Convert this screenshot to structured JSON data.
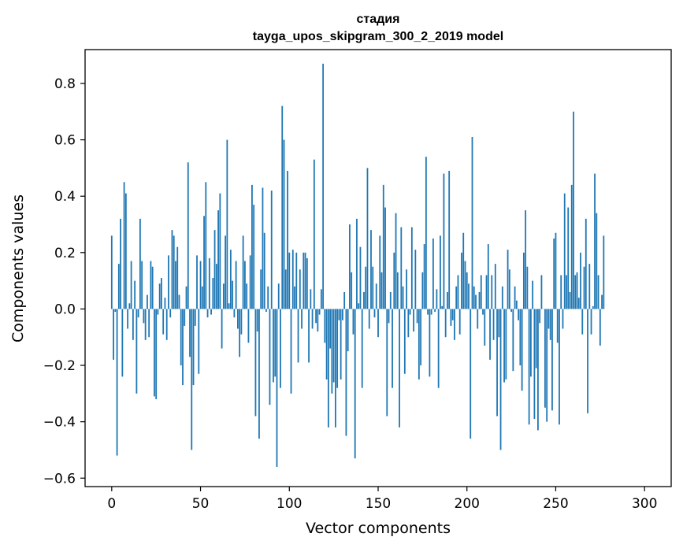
{
  "chart_data": {
    "type": "bar",
    "title_line1": "стадия",
    "title_line2": "tayga_upos_skipgram_300_2_2019 model",
    "xlabel": "Vector components",
    "ylabel": "Components values",
    "xlim": [
      -15,
      315
    ],
    "ylim": [
      -0.63,
      0.92
    ],
    "xticks": [
      0,
      50,
      100,
      150,
      200,
      250,
      300
    ],
    "xtick_labels": [
      "0",
      "50",
      "100",
      "150",
      "200",
      "250",
      "300"
    ],
    "yticks": [
      -0.6,
      -0.4,
      -0.2,
      0.0,
      0.2,
      0.4,
      0.6,
      0.8
    ],
    "ytick_labels": [
      "−0.6",
      "−0.4",
      "−0.2",
      "0.0",
      "0.2",
      "0.4",
      "0.6",
      "0.8"
    ],
    "bar_color": "#1f77b4",
    "values": [
      0.26,
      -0.18,
      -0.01,
      -0.52,
      0.16,
      0.32,
      -0.24,
      0.45,
      0.41,
      -0.07,
      0.02,
      0.17,
      -0.11,
      0.1,
      -0.3,
      -0.03,
      0.32,
      0.17,
      -0.05,
      -0.11,
      0.05,
      -0.1,
      0.17,
      0.15,
      -0.31,
      -0.32,
      -0.02,
      0.09,
      0.11,
      -0.09,
      0.04,
      -0.11,
      0.19,
      -0.03,
      0.28,
      0.26,
      0.17,
      0.22,
      0.05,
      -0.2,
      -0.27,
      -0.06,
      0.08,
      0.52,
      -0.17,
      -0.5,
      -0.27,
      -0.06,
      0.19,
      -0.23,
      0.17,
      0.08,
      0.33,
      0.45,
      -0.03,
      0.18,
      -0.02,
      0.11,
      0.28,
      0.16,
      0.35,
      0.41,
      -0.14,
      0.09,
      0.26,
      0.6,
      0.02,
      0.21,
      0.1,
      -0.03,
      0.17,
      -0.07,
      -0.17,
      -0.09,
      0.26,
      0.17,
      0.09,
      -0.12,
      0.19,
      0.44,
      0.37,
      -0.38,
      -0.08,
      -0.46,
      0.14,
      0.43,
      0.27,
      -0.01,
      0.08,
      -0.34,
      0.42,
      -0.26,
      -0.24,
      -0.56,
      0.09,
      -0.28,
      0.72,
      0.6,
      0.14,
      0.49,
      0.2,
      -0.3,
      0.21,
      0.08,
      0.2,
      -0.19,
      0.14,
      -0.07,
      0.2,
      0.2,
      0.18,
      -0.19,
      0.07,
      -0.07,
      0.53,
      -0.05,
      -0.08,
      -0.02,
      0.07,
      0.87,
      -0.12,
      -0.25,
      -0.42,
      -0.14,
      -0.3,
      -0.26,
      -0.42,
      -0.28,
      -0.04,
      -0.25,
      -0.04,
      0.06,
      -0.45,
      -0.15,
      0.3,
      0.13,
      -0.09,
      -0.53,
      0.32,
      0.02,
      0.22,
      -0.28,
      0.06,
      0.15,
      0.5,
      -0.07,
      0.28,
      0.15,
      -0.03,
      0.09,
      -0.1,
      0.26,
      0.13,
      0.44,
      0.36,
      -0.38,
      -0.05,
      0.06,
      -0.28,
      0.2,
      0.34,
      0.13,
      -0.42,
      0.29,
      0.08,
      -0.23,
      0.14,
      -0.1,
      -0.02,
      0.29,
      -0.08,
      0.21,
      -0.05,
      -0.25,
      -0.2,
      0.13,
      0.23,
      0.54,
      -0.02,
      -0.24,
      -0.02,
      0.25,
      -0.01,
      0.07,
      -0.28,
      0.26,
      0.01,
      0.48,
      -0.1,
      0.06,
      0.49,
      -0.06,
      -0.04,
      -0.11,
      0.08,
      0.12,
      -0.09,
      0.2,
      0.27,
      0.17,
      0.13,
      0.09,
      -0.46,
      0.61,
      0.08,
      0.05,
      -0.07,
      0.06,
      0.12,
      -0.02,
      -0.13,
      0.12,
      0.23,
      -0.18,
      0.12,
      -0.11,
      0.16,
      -0.38,
      -0.1,
      -0.5,
      0.08,
      -0.26,
      -0.25,
      0.21,
      0.14,
      -0.01,
      -0.22,
      0.08,
      0.03,
      -0.04,
      -0.2,
      -0.29,
      0.2,
      0.35,
      0.15,
      -0.41,
      -0.24,
      0.1,
      -0.39,
      -0.21,
      -0.43,
      -0.05,
      0.12,
      0.0,
      -0.35,
      -0.4,
      -0.07,
      -0.11,
      -0.36,
      0.25,
      0.27,
      -0.12,
      -0.41,
      0.12,
      -0.07,
      0.41,
      0.12,
      0.36,
      0.06,
      0.44,
      0.7,
      0.12,
      0.13,
      0.04,
      0.2,
      -0.09,
      0.15,
      0.32,
      -0.37,
      0.16,
      -0.09,
      0.01,
      0.48,
      0.34,
      0.12,
      -0.13,
      0.05,
      0.26
    ]
  }
}
